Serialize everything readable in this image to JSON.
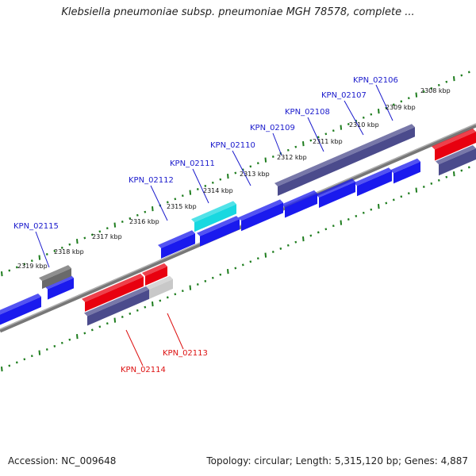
{
  "title": "Klebsiella pneumoniae subsp. pneumoniae MGH 78578, complete ...",
  "footer": {
    "accession": "Accession: NC_009648",
    "summary": "Topology: circular; Length: 5,315,120 bp; Genes: 4,887"
  },
  "colors": {
    "forward_gene": "#1a1aee",
    "reverse_gene": "#e8000f",
    "rna_gene": "#4b4b8c",
    "highlight_gene": "#18d8e0",
    "pseudo_dark": "#6a6a6a",
    "pseudo_light": "#c8c8c8",
    "backbone": "#888888",
    "ticks": "#1e7d1e",
    "label_forward": "#1a1acc",
    "label_reverse": "#dd1111"
  },
  "kbp_ticks": [
    "2308 kbp",
    "2309 kbp",
    "2310 kbp",
    "2311 kbp",
    "2312 kbp",
    "2313 kbp",
    "2314 kbp",
    "2315 kbp",
    "2316 kbp",
    "2317 kbp",
    "2318 kbp",
    "2319 kbp"
  ],
  "gene_labels_top": [
    "KPN_02106",
    "KPN_02107",
    "KPN_02108",
    "KPN_02109",
    "KPN_02110",
    "KPN_02111",
    "KPN_02112",
    "KPN_02115"
  ],
  "gene_labels_bottom": [
    "KPN_02113",
    "KPN_02114"
  ]
}
